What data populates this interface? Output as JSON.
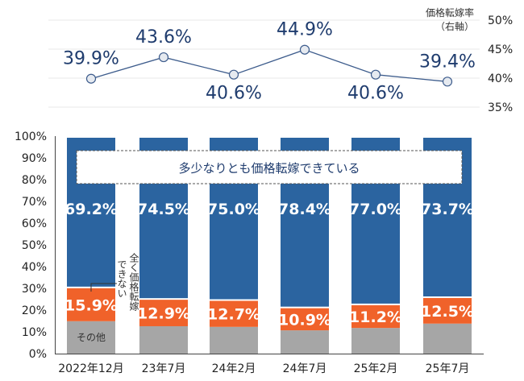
{
  "chart_data": [
    {
      "type": "line",
      "categories": [
        "2022年12月",
        "23年7月",
        "24年2月",
        "24年7月",
        "25年2月",
        "25年7月"
      ],
      "series": [
        {
          "name": "価格転嫁率",
          "values": [
            39.9,
            43.6,
            40.6,
            44.9,
            40.6,
            39.4
          ]
        }
      ],
      "data_labels": [
        "39.9%",
        "43.6%",
        "40.6%",
        "44.9%",
        "40.6%",
        "39.4%"
      ],
      "legend_line1": "価格転嫁率",
      "legend_line2": "（右軸）",
      "ylim": [
        35,
        50
      ],
      "yticks": [
        "50%",
        "45%",
        "40%",
        "35%"
      ],
      "grid": true,
      "colors": {
        "line": "#3d5c8c",
        "marker": "#e6eaf0",
        "label": "#1f3c6e"
      }
    },
    {
      "type": "stacked-bar",
      "categories": [
        "2022年12月",
        "23年7月",
        "24年2月",
        "24年7月",
        "25年2月",
        "25年7月"
      ],
      "series": [
        {
          "name": "その他",
          "values": [
            14.9,
            12.6,
            12.3,
            10.7,
            11.8,
            13.8
          ],
          "color": "#a6a6a6"
        },
        {
          "name": "全く価格転嫁できない",
          "values": [
            15.9,
            12.9,
            12.7,
            10.9,
            11.2,
            12.5
          ],
          "color": "#f0622a",
          "labels": [
            "15.9%",
            "12.9%",
            "12.7%",
            "10.9%",
            "11.2%",
            "12.5%"
          ]
        },
        {
          "name": "多少なりとも価格転嫁できている",
          "values": [
            69.2,
            74.5,
            75.0,
            78.4,
            77.0,
            73.7
          ],
          "color": "#2b64a0",
          "labels": [
            "69.2%",
            "74.5%",
            "75.0%",
            "78.4%",
            "77.0%",
            "73.7%"
          ]
        }
      ],
      "annotation_other": "その他",
      "annotation_none_col1": "全く価格転嫁",
      "annotation_none_col2": "できない",
      "annotation_partial": "多少なりとも価格転嫁できている",
      "ylim": [
        0,
        100
      ],
      "yticks": [
        "0%",
        "10%",
        "20%",
        "30%",
        "40%",
        "50%",
        "60%",
        "70%",
        "80%",
        "90%",
        "100%"
      ]
    }
  ]
}
